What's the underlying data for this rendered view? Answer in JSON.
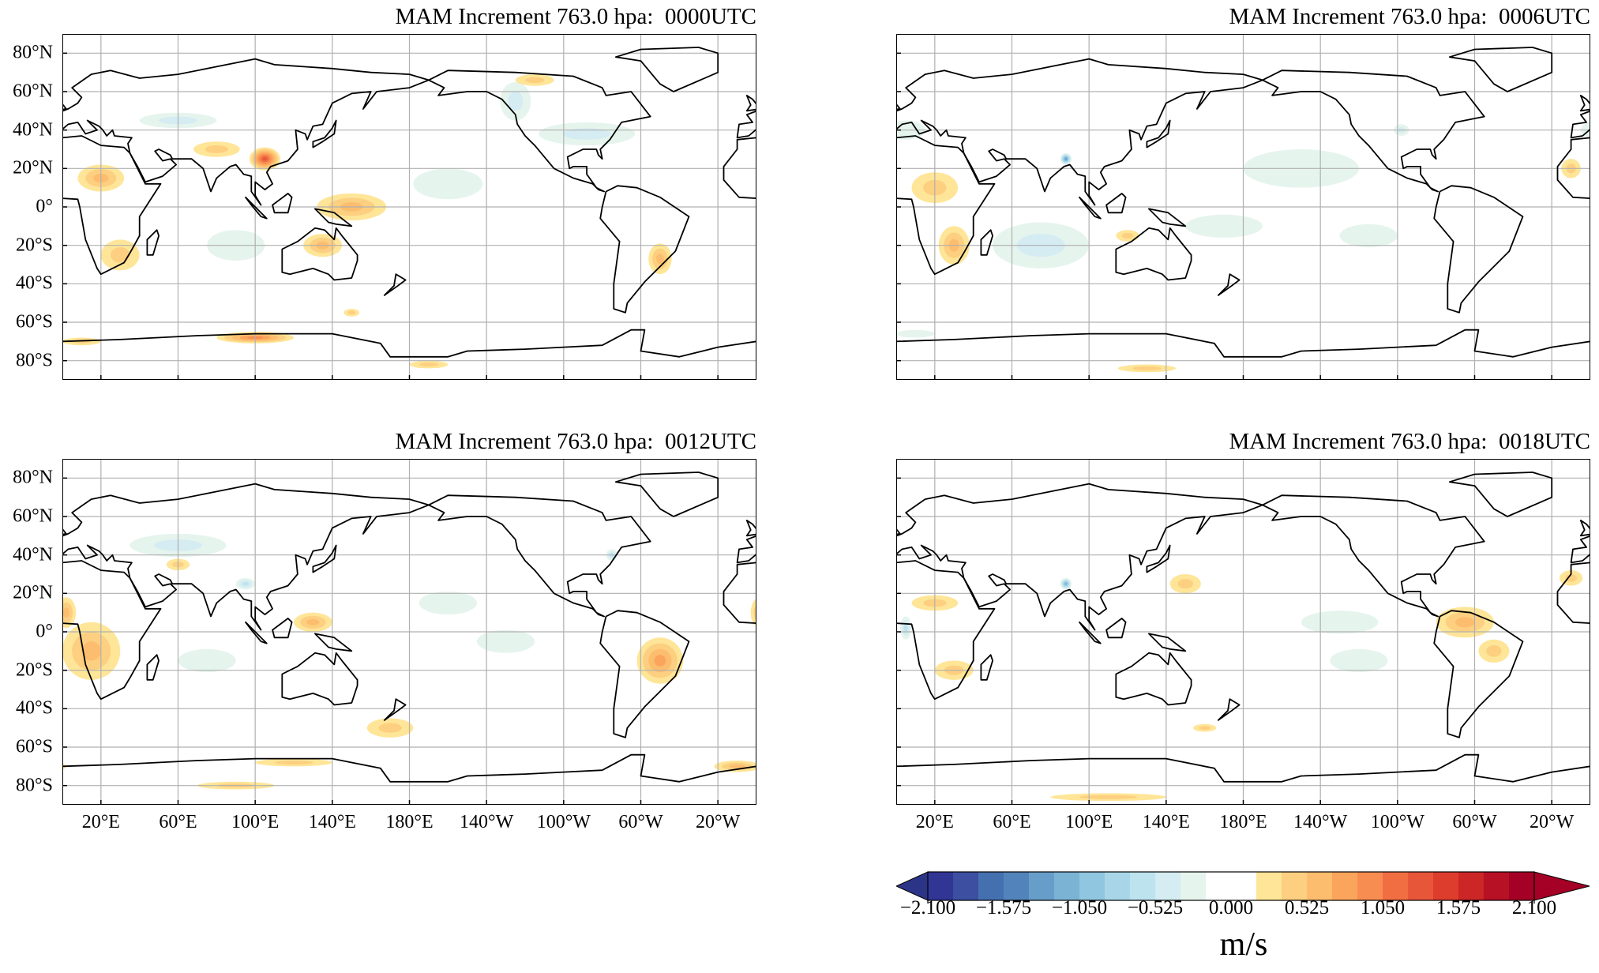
{
  "panels": [
    {
      "title": "MAM Increment 763.0 hpa:  0000UTC"
    },
    {
      "title": "MAM Increment 763.0 hpa:  0006UTC"
    },
    {
      "title": "MAM Increment 763.0 hpa:  0012UTC"
    },
    {
      "title": "MAM Increment 763.0 hpa:  0018UTC"
    }
  ],
  "axes": {
    "lat_ticks": [
      80,
      60,
      40,
      20,
      0,
      -20,
      -40,
      -60,
      -80
    ],
    "lat_labels": [
      "80°N",
      "60°N",
      "40°N",
      "20°N",
      "0°",
      "20°S",
      "40°S",
      "60°S",
      "80°S"
    ],
    "lon_ticks": [
      20,
      60,
      100,
      140,
      180,
      220,
      260,
      300,
      340
    ],
    "lon_labels": [
      "20°E",
      "60°E",
      "100°E",
      "140°E",
      "180°E",
      "140°W",
      "100°W",
      "60°W",
      "20°W"
    ]
  },
  "colorbar": {
    "tick_values": [
      -2.1,
      -1.575,
      -1.05,
      -0.525,
      0,
      0.525,
      1.05,
      1.575,
      2.1
    ],
    "tick_labels": [
      "−2.100",
      "−1.575",
      "−1.050",
      "−0.525",
      "0.000",
      "0.525",
      "1.050",
      "1.575",
      "2.100"
    ],
    "unit": "m/s",
    "range": [
      -2.1,
      2.1
    ],
    "step": 0.175,
    "colors": [
      "#313695",
      "#3c4fa0",
      "#4570b0",
      "#5284bb",
      "#679ec9",
      "#7bb3d5",
      "#91c6e0",
      "#a8d6e8",
      "#bde3ee",
      "#d4ecf2",
      "#e6f4ee",
      "#ffffff",
      "#ffffff",
      "#ffe597",
      "#fdcf80",
      "#fdbd6e",
      "#fba55c",
      "#f88d52",
      "#f16e43",
      "#e8563a",
      "#dc3d2d",
      "#cc2627",
      "#b71126",
      "#a50026"
    ],
    "under_color": "#2c3487",
    "over_color": "#a50026"
  },
  "chart_data": {
    "type": "heatmap",
    "projection": "PlateCarree",
    "lon_range": [
      0,
      360
    ],
    "lat_range": [
      -90,
      90
    ],
    "grid": true,
    "variable": "MAM Increment 763.0 hpa",
    "units": "m/s",
    "panels": [
      {
        "time": "0000UTC",
        "features": [
          {
            "lon": 105,
            "lat": 25,
            "value": 1.2,
            "dlon": 8,
            "dlat": 6
          },
          {
            "lon": 20,
            "lat": 15,
            "value": 0.6,
            "dlon": 12,
            "dlat": 7
          },
          {
            "lon": 30,
            "lat": -25,
            "value": 0.4,
            "dlon": 10,
            "dlat": 8
          },
          {
            "lon": 150,
            "lat": 0,
            "value": 0.45,
            "dlon": 18,
            "dlat": 7
          },
          {
            "lon": 135,
            "lat": -20,
            "value": 0.55,
            "dlon": 10,
            "dlat": 6
          },
          {
            "lon": 80,
            "lat": 30,
            "value": 0.4,
            "dlon": 12,
            "dlat": 4
          },
          {
            "lon": 200,
            "lat": 12,
            "value": -0.15,
            "dlon": 18,
            "dlat": 8
          },
          {
            "lon": 272,
            "lat": 38,
            "value": -0.35,
            "dlon": 25,
            "dlat": 6
          },
          {
            "lon": 235,
            "lat": 55,
            "value": -0.3,
            "dlon": 8,
            "dlat": 10
          },
          {
            "lon": 310,
            "lat": -27,
            "value": 0.5,
            "dlon": 6,
            "dlat": 8
          },
          {
            "lon": 100,
            "lat": -68,
            "value": 0.9,
            "dlon": 20,
            "dlat": 3
          },
          {
            "lon": 10,
            "lat": -70,
            "value": 0.4,
            "dlon": 10,
            "dlat": 2
          },
          {
            "lon": 190,
            "lat": -82,
            "value": 0.4,
            "dlon": 10,
            "dlat": 2
          },
          {
            "lon": 60,
            "lat": 45,
            "value": -0.3,
            "dlon": 20,
            "dlat": 4
          },
          {
            "lon": 90,
            "lat": -20,
            "value": -0.2,
            "dlon": 15,
            "dlat": 8
          },
          {
            "lon": 150,
            "lat": -55,
            "value": 0.3,
            "dlon": 4,
            "dlat": 2
          },
          {
            "lon": 245,
            "lat": 66,
            "value": 0.3,
            "dlon": 10,
            "dlat": 3
          }
        ]
      },
      {
        "time": "0006UTC",
        "features": [
          {
            "lon": 88,
            "lat": 25,
            "value": -1.2,
            "dlon": 3,
            "dlat": 3
          },
          {
            "lon": 20,
            "lat": 10,
            "value": 0.4,
            "dlon": 12,
            "dlat": 8
          },
          {
            "lon": 30,
            "lat": -20,
            "value": 0.5,
            "dlon": 8,
            "dlat": 10
          },
          {
            "lon": 75,
            "lat": -20,
            "value": -0.35,
            "dlon": 25,
            "dlat": 12
          },
          {
            "lon": 210,
            "lat": 20,
            "value": -0.15,
            "dlon": 30,
            "dlat": 10
          },
          {
            "lon": 170,
            "lat": -10,
            "value": -0.15,
            "dlon": 20,
            "dlat": 6
          },
          {
            "lon": 245,
            "lat": -15,
            "value": -0.2,
            "dlon": 15,
            "dlat": 6
          },
          {
            "lon": 262,
            "lat": 40,
            "value": -0.4,
            "dlon": 4,
            "dlat": 3
          },
          {
            "lon": 120,
            "lat": -15,
            "value": 0.4,
            "dlon": 6,
            "dlat": 3
          },
          {
            "lon": 130,
            "lat": -84,
            "value": 0.3,
            "dlon": 15,
            "dlat": 2
          },
          {
            "lon": 10,
            "lat": -66,
            "value": -0.15,
            "dlon": 10,
            "dlat": 2
          },
          {
            "lon": 5,
            "lat": 40,
            "value": -0.2,
            "dlon": 10,
            "dlat": 5
          },
          {
            "lon": 350,
            "lat": 20,
            "value": 0.4,
            "dlon": 5,
            "dlat": 5
          }
        ]
      },
      {
        "time": "0012UTC",
        "features": [
          {
            "lon": 15,
            "lat": -10,
            "value": 0.6,
            "dlon": 15,
            "dlat": 15
          },
          {
            "lon": 310,
            "lat": -15,
            "value": 0.75,
            "dlon": 12,
            "dlat": 12
          },
          {
            "lon": 60,
            "lat": 45,
            "value": -0.3,
            "dlon": 25,
            "dlat": 6
          },
          {
            "lon": 95,
            "lat": 25,
            "value": -0.5,
            "dlon": 5,
            "dlat": 3
          },
          {
            "lon": 130,
            "lat": 5,
            "value": 0.45,
            "dlon": 10,
            "dlat": 5
          },
          {
            "lon": 170,
            "lat": -50,
            "value": 0.35,
            "dlon": 12,
            "dlat": 5
          },
          {
            "lon": 230,
            "lat": -5,
            "value": -0.25,
            "dlon": 15,
            "dlat": 6
          },
          {
            "lon": 200,
            "lat": 15,
            "value": -0.15,
            "dlon": 15,
            "dlat": 6
          },
          {
            "lon": 350,
            "lat": -70,
            "value": 0.45,
            "dlon": 12,
            "dlat": 3
          },
          {
            "lon": 120,
            "lat": -68,
            "value": 0.35,
            "dlon": 20,
            "dlat": 2
          },
          {
            "lon": 75,
            "lat": -15,
            "value": -0.2,
            "dlon": 15,
            "dlat": 6
          },
          {
            "lon": 285,
            "lat": 40,
            "value": -0.5,
            "dlon": 3,
            "dlat": 3
          },
          {
            "lon": 2,
            "lat": 10,
            "value": 0.5,
            "dlon": 5,
            "dlat": 8
          },
          {
            "lon": 60,
            "lat": 35,
            "value": 0.4,
            "dlon": 6,
            "dlat": 3
          },
          {
            "lon": 90,
            "lat": -80,
            "value": 0.3,
            "dlon": 20,
            "dlat": 2
          }
        ]
      },
      {
        "time": "0018UTC",
        "features": [
          {
            "lon": 88,
            "lat": 25,
            "value": -1.1,
            "dlon": 3,
            "dlat": 3
          },
          {
            "lon": 295,
            "lat": 5,
            "value": 0.5,
            "dlon": 15,
            "dlat": 8
          },
          {
            "lon": 310,
            "lat": -10,
            "value": 0.4,
            "dlon": 8,
            "dlat": 6
          },
          {
            "lon": 20,
            "lat": 15,
            "value": 0.35,
            "dlon": 12,
            "dlat": 4
          },
          {
            "lon": 30,
            "lat": -20,
            "value": 0.35,
            "dlon": 10,
            "dlat": 5
          },
          {
            "lon": 150,
            "lat": 25,
            "value": 0.35,
            "dlon": 8,
            "dlat": 5
          },
          {
            "lon": 230,
            "lat": 5,
            "value": -0.2,
            "dlon": 20,
            "dlat": 6
          },
          {
            "lon": 240,
            "lat": -15,
            "value": -0.15,
            "dlon": 15,
            "dlat": 6
          },
          {
            "lon": 350,
            "lat": 28,
            "value": 0.3,
            "dlon": 6,
            "dlat": 4
          },
          {
            "lon": 110,
            "lat": -86,
            "value": 0.3,
            "dlon": 30,
            "dlat": 2
          },
          {
            "lon": 160,
            "lat": -50,
            "value": 0.3,
            "dlon": 6,
            "dlat": 2
          },
          {
            "lon": 5,
            "lat": 2,
            "value": -0.6,
            "dlon": 3,
            "dlat": 6
          }
        ]
      }
    ]
  }
}
